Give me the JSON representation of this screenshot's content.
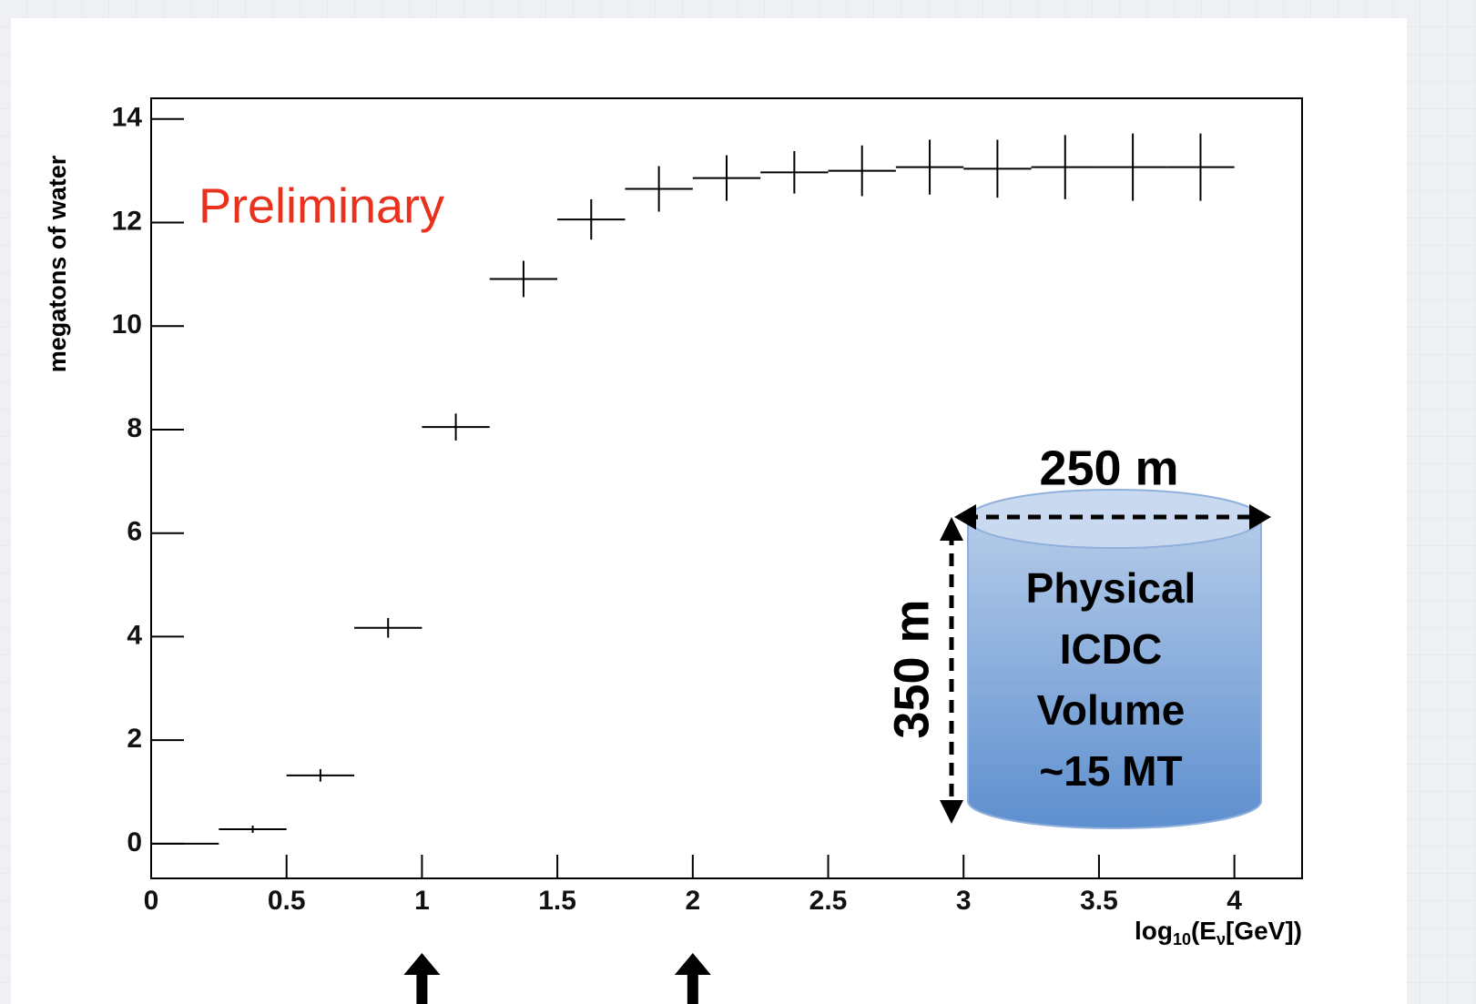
{
  "chart_data": {
    "type": "histogram",
    "y_label": "megatons of water",
    "x_label": {
      "base": "log",
      "base_sub": "10",
      "open": "(E",
      "open_sub": "ν",
      "close": "[GeV])"
    },
    "bins": [
      0,
      0.25,
      0.5,
      0.75,
      1,
      1.25,
      1.5,
      1.75,
      2,
      2.25,
      2.5,
      2.75,
      3,
      3.25,
      3.5,
      3.75,
      4
    ],
    "values": [
      0.0,
      0.28,
      1.32,
      4.17,
      8.05,
      10.91,
      12.06,
      12.65,
      12.86,
      12.97,
      13.0,
      13.07,
      13.04,
      13.07,
      13.07,
      13.07
    ],
    "errors": [
      0.0,
      0.07,
      0.12,
      0.19,
      0.26,
      0.35,
      0.39,
      0.44,
      0.44,
      0.41,
      0.49,
      0.53,
      0.56,
      0.62,
      0.65,
      0.65
    ],
    "color": "#000000",
    "xlim": [
      0,
      4.25
    ],
    "ylim": [
      -0.67,
      14.4
    ],
    "xticks": [
      0,
      0.5,
      1,
      1.5,
      2,
      2.5,
      3,
      3.5,
      4
    ],
    "yticks": [
      0,
      2,
      4,
      6,
      8,
      10,
      12,
      14
    ],
    "annotations": {
      "preliminary": "Preliminary",
      "width": "250 m",
      "height": "350 m",
      "volume": [
        "Physical",
        "ICDC",
        "Volume",
        "~15 MT"
      ]
    }
  }
}
